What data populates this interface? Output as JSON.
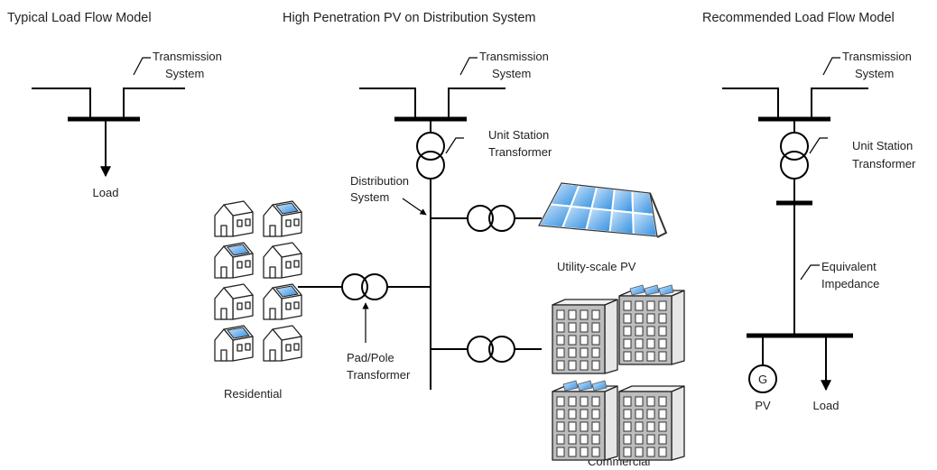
{
  "panels": [
    {
      "title": "Typical Load Flow Model",
      "transmission": [
        "Transmission",
        "System"
      ],
      "load": "Load"
    },
    {
      "title": "High Penetration PV on Distribution System",
      "transmission": [
        "Transmission",
        "System"
      ],
      "unit_transformer": [
        "Unit Station",
        "Transformer"
      ],
      "distribution": [
        "Distribution",
        "System"
      ],
      "utility_pv": "Utility-scale PV",
      "pad_transformer": [
        "Pad/Pole",
        "Transformer"
      ],
      "residential": "Residential",
      "commercial": "Commercial"
    },
    {
      "title": "Recommended Load Flow Model",
      "transmission": [
        "Transmission",
        "System"
      ],
      "unit_transformer": [
        "Unit Station",
        "Transformer"
      ],
      "impedance": [
        "Equivalent",
        "Impedance"
      ],
      "generator": "G",
      "pv": "PV",
      "load": "Load"
    }
  ]
}
